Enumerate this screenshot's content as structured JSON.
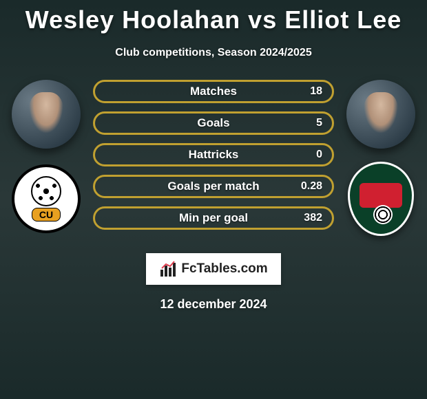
{
  "title": {
    "player1": "Wesley Hoolahan",
    "vs": "vs",
    "player2": "Elliot Lee"
  },
  "subtitle": "Club competitions, Season 2024/2025",
  "left_player": {
    "crest_label": "CU"
  },
  "bars": {
    "border_color": "#c0a030",
    "fill_color": "#c0a030",
    "text_color": "#ffffff",
    "items": [
      {
        "label": "Matches",
        "value": "18",
        "fill_pct": 0
      },
      {
        "label": "Goals",
        "value": "5",
        "fill_pct": 0
      },
      {
        "label": "Hattricks",
        "value": "0",
        "fill_pct": 0
      },
      {
        "label": "Goals per match",
        "value": "0.28",
        "fill_pct": 0
      },
      {
        "label": "Min per goal",
        "value": "382",
        "fill_pct": 0
      }
    ]
  },
  "watermark": "FcTables.com",
  "date": "12 december 2024",
  "colors": {
    "background_top": "#1a2a2a",
    "background_mid": "#2a3838",
    "title_color": "#ffffff",
    "watermark_text": "#222222"
  }
}
